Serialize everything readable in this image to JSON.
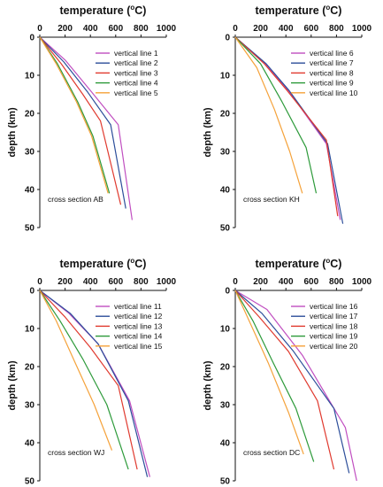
{
  "chart_data": [
    {
      "type": "line",
      "title_prefix": "temperature (",
      "title_sup": "o",
      "title_suffix": "C)",
      "ylabel": "depth (km)",
      "xlim": [
        0,
        1000
      ],
      "ylim": [
        50,
        0
      ],
      "xticks": [
        0,
        200,
        400,
        600,
        800,
        1000
      ],
      "yticks": [
        0,
        10,
        20,
        30,
        40,
        50
      ],
      "annotation": "cross section AB",
      "legend_position": "top-right",
      "series": [
        {
          "name": "vertical line 1",
          "color": "#c04ec0",
          "points": [
            [
              0,
              0
            ],
            [
              200,
              6
            ],
            [
              400,
              14
            ],
            [
              620,
              23
            ],
            [
              730,
              48
            ]
          ]
        },
        {
          "name": "vertical line 2",
          "color": "#2c4e9a",
          "points": [
            [
              0,
              0
            ],
            [
              190,
              6.5
            ],
            [
              380,
              14.5
            ],
            [
              560,
              23
            ],
            [
              680,
              45
            ]
          ]
        },
        {
          "name": "vertical line 3",
          "color": "#e03a2f",
          "points": [
            [
              0,
              0
            ],
            [
              170,
              7
            ],
            [
              340,
              15
            ],
            [
              480,
              22
            ],
            [
              640,
              44
            ]
          ]
        },
        {
          "name": "vertical line 4",
          "color": "#2d9a3a",
          "points": [
            [
              0,
              0
            ],
            [
              140,
              7
            ],
            [
              300,
              17
            ],
            [
              420,
              26
            ],
            [
              550,
              41
            ]
          ]
        },
        {
          "name": "vertical line 5",
          "color": "#f5a23a",
          "points": [
            [
              0,
              0
            ],
            [
              130,
              7
            ],
            [
              290,
              17
            ],
            [
              410,
              26
            ],
            [
              540,
              41
            ]
          ]
        }
      ]
    },
    {
      "type": "line",
      "title_prefix": "temperature (",
      "title_sup": "o",
      "title_suffix": "C)",
      "ylabel": "depth (km)",
      "xlim": [
        0,
        1000
      ],
      "ylim": [
        50,
        0
      ],
      "xticks": [
        0,
        200,
        400,
        600,
        800,
        1000
      ],
      "yticks": [
        0,
        10,
        20,
        30,
        40,
        50
      ],
      "annotation": "cross section KH",
      "legend_position": "top-right",
      "series": [
        {
          "name": "vertical line  6",
          "color": "#c04ec0",
          "points": [
            [
              0,
              0
            ],
            [
              240,
              7
            ],
            [
              420,
              14
            ],
            [
              720,
              28
            ],
            [
              830,
              48
            ]
          ]
        },
        {
          "name": "vertical line  7",
          "color": "#2c4e9a",
          "points": [
            [
              0,
              0
            ],
            [
              245,
              7
            ],
            [
              425,
              14
            ],
            [
              730,
              28
            ],
            [
              850,
              49
            ]
          ]
        },
        {
          "name": "vertical line  8",
          "color": "#e03a2f",
          "points": [
            [
              0,
              0
            ],
            [
              230,
              7
            ],
            [
              410,
              14
            ],
            [
              720,
              27
            ],
            [
              810,
              47
            ]
          ]
        },
        {
          "name": "vertical line  9",
          "color": "#2d9a3a",
          "points": [
            [
              0,
              0
            ],
            [
              200,
              7
            ],
            [
              370,
              17
            ],
            [
              560,
              29
            ],
            [
              640,
              41
            ]
          ]
        },
        {
          "name": "vertical line 10",
          "color": "#f5a23a",
          "points": [
            [
              0,
              0
            ],
            [
              170,
              8
            ],
            [
              310,
              19
            ],
            [
              430,
              30
            ],
            [
              530,
              41
            ]
          ]
        }
      ]
    },
    {
      "type": "line",
      "title_prefix": "temperature (",
      "title_sup": "o",
      "title_suffix": "C)",
      "ylabel": "depth (km)",
      "xlim": [
        0,
        1000
      ],
      "ylim": [
        50,
        0
      ],
      "xticks": [
        0,
        200,
        400,
        600,
        800,
        1000
      ],
      "yticks": [
        0,
        10,
        20,
        30,
        40,
        50
      ],
      "annotation": "cross section WJ",
      "legend_position": "top-right",
      "series": [
        {
          "name": "vertical line 11",
          "color": "#c04ec0",
          "points": [
            [
              0,
              0
            ],
            [
              230,
              6
            ],
            [
              460,
              14
            ],
            [
              710,
              29
            ],
            [
              870,
              49
            ]
          ]
        },
        {
          "name": "vertical line 12",
          "color": "#2c4e9a",
          "points": [
            [
              0,
              0
            ],
            [
              240,
              6
            ],
            [
              460,
              14
            ],
            [
              700,
              29
            ],
            [
              850,
              49
            ]
          ]
        },
        {
          "name": "vertical line 13",
          "color": "#e03a2f",
          "points": [
            [
              0,
              0
            ],
            [
              200,
              7
            ],
            [
              400,
              15
            ],
            [
              620,
              25
            ],
            [
              770,
              47
            ]
          ]
        },
        {
          "name": "vertical line 14",
          "color": "#2d9a3a",
          "points": [
            [
              0,
              0
            ],
            [
              160,
              8
            ],
            [
              340,
              18
            ],
            [
              530,
              30
            ],
            [
              700,
              47
            ]
          ]
        },
        {
          "name": "vertical line 15",
          "color": "#f5a23a",
          "points": [
            [
              0,
              0
            ],
            [
              130,
              8
            ],
            [
              280,
              19
            ],
            [
              430,
              30
            ],
            [
              570,
              42
            ]
          ]
        }
      ]
    },
    {
      "type": "line",
      "title_prefix": "temperature (",
      "title_sup": "o",
      "title_suffix": "C)",
      "ylabel": "depth (km)",
      "xlim": [
        0,
        1000
      ],
      "ylim": [
        50,
        0
      ],
      "xticks": [
        0,
        200,
        400,
        600,
        800,
        1000
      ],
      "yticks": [
        0,
        10,
        20,
        30,
        40,
        50
      ],
      "annotation": "cross section DC",
      "legend_position": "top-right",
      "series": [
        {
          "name": "vertical line 16",
          "color": "#c04ec0",
          "points": [
            [
              0,
              0
            ],
            [
              250,
              5
            ],
            [
              530,
              17
            ],
            [
              870,
              36
            ],
            [
              960,
              50
            ]
          ]
        },
        {
          "name": "vertical line 17",
          "color": "#2c4e9a",
          "points": [
            [
              0,
              0
            ],
            [
              210,
              6
            ],
            [
              460,
              16
            ],
            [
              780,
              31
            ],
            [
              900,
              48
            ]
          ]
        },
        {
          "name": "vertical line 18",
          "color": "#e03a2f",
          "points": [
            [
              0,
              0
            ],
            [
              190,
              7
            ],
            [
              420,
              16
            ],
            [
              650,
              29
            ],
            [
              780,
              47
            ]
          ]
        },
        {
          "name": "vertical line 19",
          "color": "#2d9a3a",
          "points": [
            [
              0,
              0
            ],
            [
              140,
              8
            ],
            [
              300,
              19
            ],
            [
              480,
              31
            ],
            [
              620,
              45
            ]
          ]
        },
        {
          "name": "vertical line 20",
          "color": "#f5a23a",
          "points": [
            [
              0,
              0
            ],
            [
              110,
              8
            ],
            [
              260,
              19
            ],
            [
              420,
              32
            ],
            [
              540,
              43
            ]
          ]
        }
      ]
    }
  ]
}
